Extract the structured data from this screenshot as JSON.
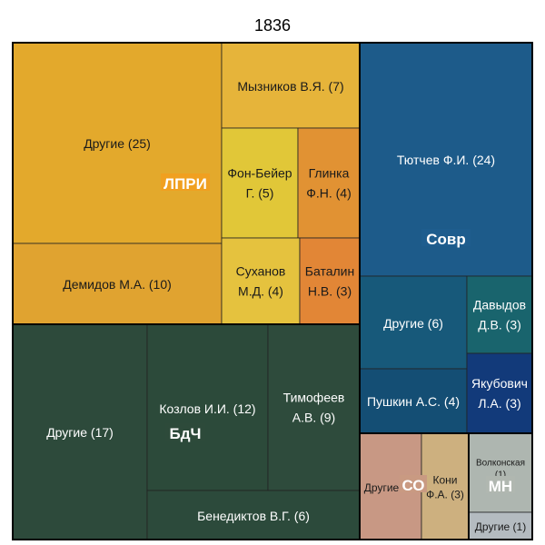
{
  "chart_data": {
    "type": "treemap",
    "title": "1836",
    "groups": [
      {
        "name": "ЛПРИ",
        "label_bg": "#f0a020",
        "label_color": "#000000",
        "children": [
          {
            "label": "Другие (25)",
            "value": 25,
            "color": "#e3a92c"
          },
          {
            "label": "Демидов М.А. (10)",
            "value": 10,
            "color": "#e0a330"
          },
          {
            "label": "Мызников В.Я. (7)",
            "value": 7,
            "color": "#e6b43a"
          },
          {
            "label": "Фон-Бейер Г. (5)",
            "value": 5,
            "color": "#e1c738"
          },
          {
            "label": "Глинка Ф.Н. (4)",
            "value": 4,
            "color": "#e19233"
          },
          {
            "label": "Суханов М.Д. (4)",
            "value": 4,
            "color": "#e5c23e"
          },
          {
            "label": "Баталин Н.В. (3)",
            "value": 3,
            "color": "#e28636"
          }
        ]
      },
      {
        "name": "Совр",
        "label_bg": "#1e5d8e",
        "label_color": "#ffffff",
        "children": [
          {
            "label": "Тютчев Ф.И. (24)",
            "value": 24,
            "color": "#1d5b8a"
          },
          {
            "label": "Другие (6)",
            "value": 6,
            "color": "#17597a"
          },
          {
            "label": "Давыдов Д.В. (3)",
            "value": 3,
            "color": "#19646d"
          },
          {
            "label": "Пушкин А.С. (4)",
            "value": 4,
            "color": "#144e74"
          },
          {
            "label": "Якубович Л.А. (3)",
            "value": 3,
            "color": "#123a7a"
          }
        ]
      },
      {
        "name": "БдЧ",
        "label_bg": "#2d4a3a",
        "label_color": "#ffffff",
        "children": [
          {
            "label": "Другие (17)",
            "value": 17,
            "color": "#2d4a3b"
          },
          {
            "label": "Козлов И.И. (12)",
            "value": 12,
            "color": "#2c4a3a"
          },
          {
            "label": "Тимофеев А.В. (9)",
            "value": 9,
            "color": "#2e4b3c"
          },
          {
            "label": "Бенедиктов В.Г. (6)",
            "value": 6,
            "color": "#2c4a3b"
          }
        ]
      },
      {
        "name": "СО",
        "label_bg": "#c99a82",
        "label_color": "#000000",
        "children": [
          {
            "label": "Другие",
            "value": 2,
            "color": "#c89884"
          },
          {
            "label": "Кони Ф.А. (3)",
            "value": 3,
            "color": "#cdb07f"
          }
        ]
      },
      {
        "name": "МН",
        "label_bg": "#b0b7b0",
        "label_color": "#000000",
        "children": [
          {
            "label": "Волконская (1)",
            "value": 1,
            "color": "#aeb6b0"
          },
          {
            "label": "Другие (1)",
            "value": 1,
            "color": "#b4bbc0"
          }
        ]
      }
    ]
  }
}
